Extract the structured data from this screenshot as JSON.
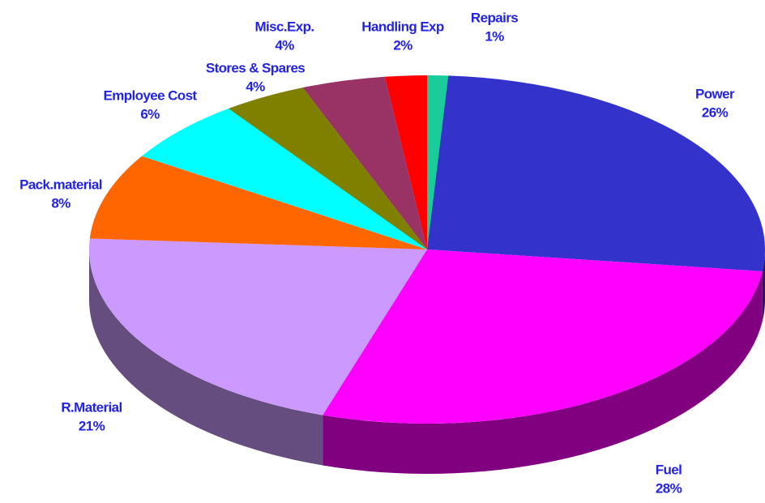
{
  "chart_data": {
    "type": "pie3d",
    "categories": [
      "Repairs",
      "Power",
      "Fuel",
      "R.Material",
      "Pack.material",
      "Employee Cost",
      "Stores & Spares",
      "Misc.Exp.",
      "Handling Exp"
    ],
    "values": [
      1,
      26,
      28,
      21,
      8,
      6,
      4,
      4,
      2
    ],
    "value_labels": [
      "1%",
      "26%",
      "28%",
      "21%",
      "8%",
      "6%",
      "4%",
      "4%",
      "2%"
    ],
    "colors": [
      "#1acc99",
      "#3333cc",
      "#ff00ff",
      "#cc99ff",
      "#ff6600",
      "#00ffff",
      "#808000",
      "#993366",
      "#ff0000"
    ]
  }
}
